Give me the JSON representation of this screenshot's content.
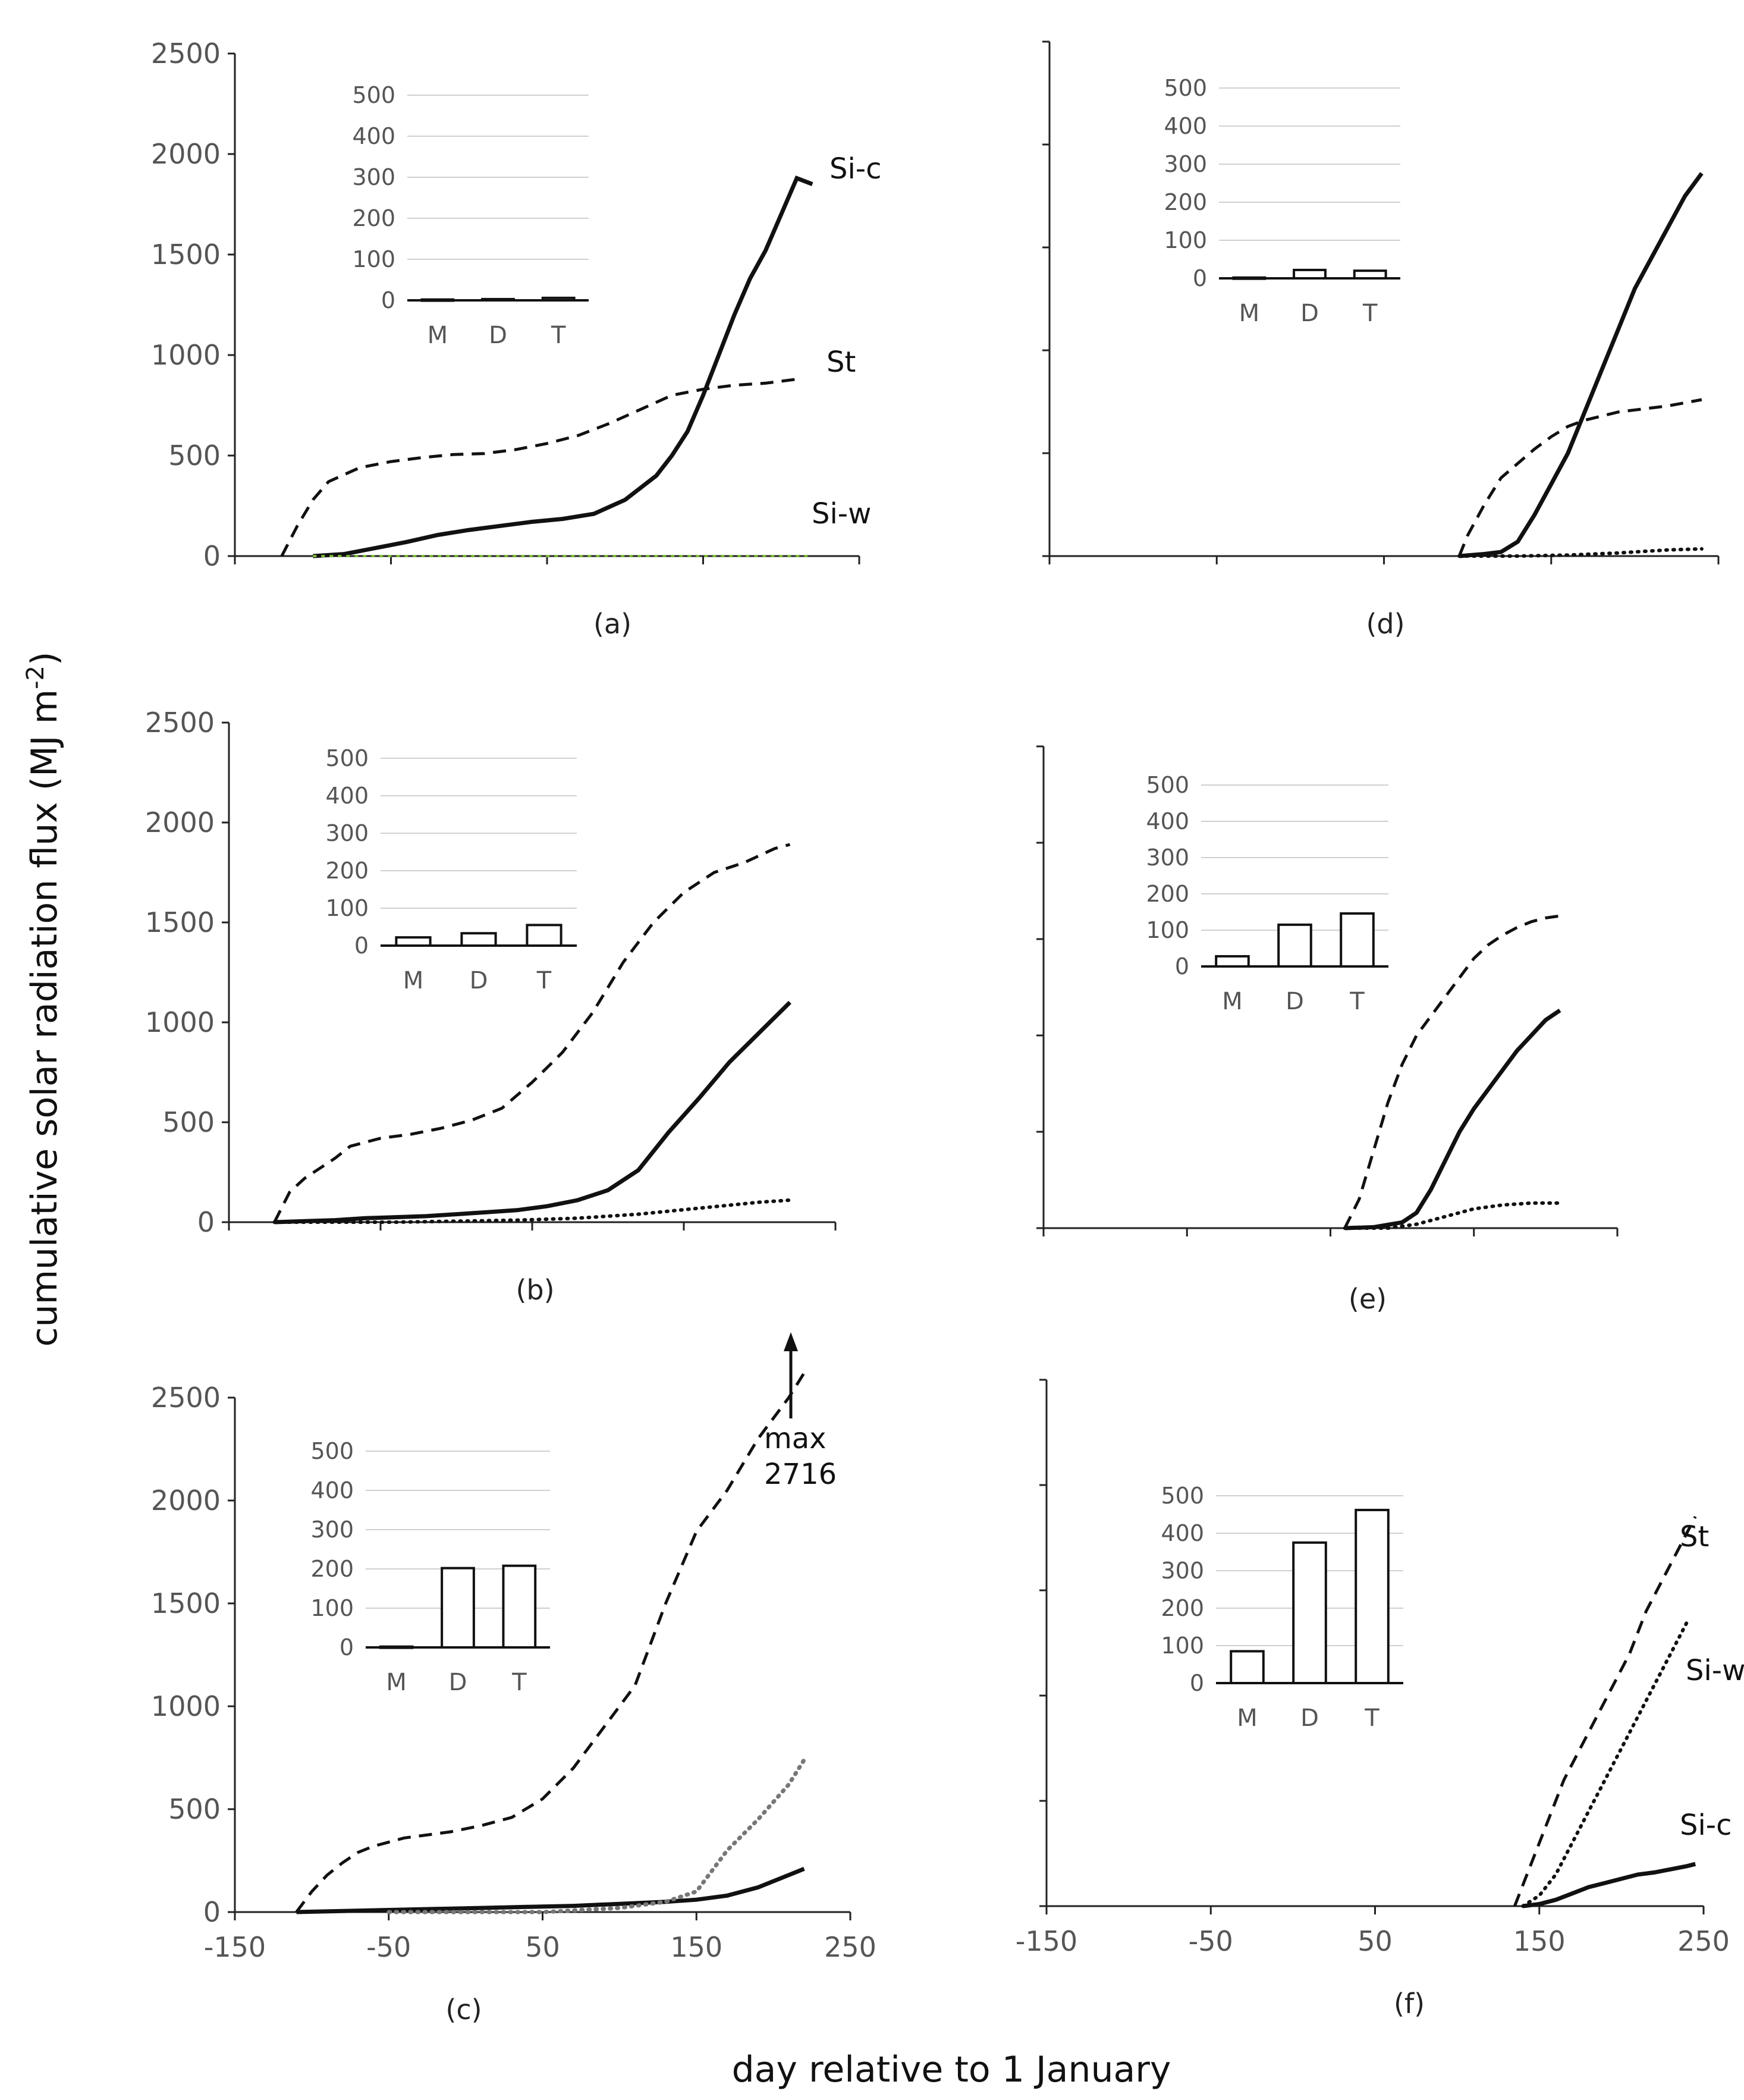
{
  "figure": {
    "ylabel": "cumulative solar radiation flux (MJ m⁻²)",
    "ylabel_base": "cumulative solar radiation flux (MJ m",
    "ylabel_sup": "-2",
    "ylabel_end": ")",
    "xlabel": "day relative to 1 January"
  },
  "chart_data": [
    {
      "panel": "(a)",
      "type": "line",
      "xlim": [
        -150,
        250
      ],
      "ylim": [
        0,
        2500
      ],
      "x_ticks_labeled": false,
      "y_ticks_labeled": true,
      "x_ticks": [
        -150,
        -50,
        50,
        150,
        250
      ],
      "y_ticks": [
        0,
        500,
        1000,
        1500,
        2000,
        2500
      ],
      "series": [
        {
          "name": "Si-c",
          "style": "solid",
          "x": [
            -100,
            -80,
            -60,
            -40,
            -20,
            0,
            20,
            40,
            60,
            80,
            100,
            110,
            120,
            130,
            140,
            150,
            160,
            170,
            180,
            190,
            200,
            210,
            220
          ],
          "y": [
            0,
            10,
            40,
            70,
            105,
            130,
            150,
            170,
            185,
            210,
            280,
            340,
            400,
            500,
            620,
            800,
            1000,
            1200,
            1380,
            1520,
            1700,
            1880,
            1850
          ]
        },
        {
          "name": "St",
          "style": "dashed",
          "x": [
            -120,
            -110,
            -100,
            -90,
            -70,
            -50,
            -30,
            -10,
            10,
            30,
            50,
            70,
            90,
            110,
            130,
            150,
            170,
            190,
            210
          ],
          "y": [
            0,
            150,
            280,
            370,
            440,
            470,
            490,
            505,
            510,
            530,
            560,
            600,
            660,
            730,
            800,
            830,
            850,
            860,
            880
          ]
        },
        {
          "name": "Si-w",
          "style": "dotted-green",
          "x": [
            -100,
            220
          ],
          "y": [
            0,
            0
          ]
        }
      ],
      "inset": {
        "categories": [
          "M",
          "D",
          "T"
        ],
        "values": [
          2,
          3,
          6
        ],
        "ylim": [
          0,
          500
        ],
        "yticks": [
          0,
          100,
          200,
          300,
          400,
          500
        ]
      },
      "annotations": []
    },
    {
      "panel": "(b)",
      "type": "line",
      "xlim": [
        -150,
        250
      ],
      "ylim": [
        0,
        2500
      ],
      "x_ticks_labeled": false,
      "y_ticks_labeled": true,
      "x_ticks": [
        -150,
        -50,
        50,
        150,
        250
      ],
      "y_ticks": [
        0,
        500,
        1000,
        1500,
        2000,
        2500
      ],
      "series": [
        {
          "name": "",
          "style": "dashed",
          "x": [
            -120,
            -110,
            -100,
            -90,
            -80,
            -70,
            -50,
            -30,
            -10,
            10,
            30,
            50,
            70,
            90,
            110,
            130,
            150,
            170,
            190,
            210,
            220
          ],
          "y": [
            0,
            150,
            220,
            270,
            320,
            380,
            420,
            440,
            470,
            510,
            570,
            700,
            850,
            1050,
            1300,
            1500,
            1650,
            1750,
            1800,
            1870,
            1890
          ]
        },
        {
          "name": "",
          "style": "solid",
          "x": [
            -120,
            -100,
            -80,
            -60,
            -40,
            -20,
            0,
            20,
            40,
            60,
            80,
            100,
            120,
            140,
            160,
            180,
            200,
            220
          ],
          "y": [
            0,
            5,
            10,
            20,
            25,
            30,
            40,
            50,
            60,
            80,
            110,
            160,
            260,
            450,
            620,
            800,
            950,
            1100
          ]
        },
        {
          "name": "",
          "style": "dotted",
          "x": [
            -120,
            -80,
            -40,
            0,
            40,
            80,
            120,
            160,
            200,
            220
          ],
          "y": [
            0,
            0,
            0,
            5,
            10,
            20,
            40,
            70,
            100,
            110
          ]
        }
      ],
      "inset": {
        "categories": [
          "M",
          "D",
          "T"
        ],
        "values": [
          22,
          33,
          55
        ],
        "ylim": [
          0,
          500
        ],
        "yticks": [
          0,
          100,
          200,
          300,
          400,
          500
        ]
      },
      "annotations": []
    },
    {
      "panel": "(c)",
      "type": "line",
      "xlim": [
        -150,
        250
      ],
      "ylim": [
        0,
        2500
      ],
      "x_ticks_labeled": true,
      "y_ticks_labeled": true,
      "x_ticks": [
        -150,
        -50,
        50,
        150,
        250
      ],
      "y_ticks": [
        0,
        500,
        1000,
        1500,
        2000,
        2500
      ],
      "series": [
        {
          "name": "",
          "style": "dashed",
          "x": [
            -110,
            -100,
            -90,
            -80,
            -70,
            -60,
            -50,
            -40,
            -30,
            -10,
            10,
            30,
            50,
            70,
            90,
            110,
            130,
            150,
            170,
            190,
            210,
            220
          ],
          "y": [
            0,
            100,
            180,
            240,
            290,
            320,
            340,
            360,
            370,
            390,
            420,
            460,
            550,
            700,
            900,
            1100,
            1500,
            1850,
            2050,
            2300,
            2500,
            2620
          ]
        },
        {
          "name": "",
          "style": "solid",
          "x": [
            -110,
            -80,
            -50,
            -20,
            10,
            40,
            70,
            100,
            130,
            150,
            170,
            190,
            210,
            220
          ],
          "y": [
            0,
            5,
            10,
            15,
            20,
            25,
            30,
            40,
            50,
            60,
            80,
            120,
            180,
            210
          ]
        },
        {
          "name": "",
          "style": "dotted-gray",
          "x": [
            -50,
            0,
            50,
            100,
            130,
            150,
            170,
            190,
            210,
            220
          ],
          "y": [
            0,
            0,
            0,
            20,
            50,
            100,
            300,
            450,
            620,
            740
          ]
        }
      ],
      "inset": {
        "categories": [
          "M",
          "D",
          "T"
        ],
        "values": [
          2,
          202,
          208
        ],
        "ylim": [
          0,
          500
        ],
        "yticks": [
          0,
          100,
          200,
          300,
          400,
          500
        ]
      },
      "annotations": [
        {
          "line1": "max",
          "line2": "2716"
        }
      ]
    },
    {
      "panel": "(d)",
      "type": "line",
      "xlim": [
        -150,
        250
      ],
      "ylim": [
        0,
        2500
      ],
      "x_ticks_labeled": false,
      "y_ticks_labeled": false,
      "x_ticks": [
        -150,
        -50,
        50,
        150,
        250
      ],
      "y_ticks": [
        0,
        500,
        1000,
        1500,
        2000,
        2500
      ],
      "series": [
        {
          "name": "",
          "style": "dashed",
          "x": [
            95,
            100,
            110,
            120,
            130,
            140,
            150,
            160,
            170,
            180,
            190,
            200,
            210,
            220,
            230,
            240
          ],
          "y": [
            0,
            100,
            250,
            380,
            450,
            520,
            580,
            630,
            660,
            680,
            700,
            710,
            720,
            730,
            745,
            760
          ]
        },
        {
          "name": "",
          "style": "solid",
          "x": [
            95,
            110,
            120,
            130,
            140,
            150,
            160,
            170,
            180,
            190,
            200,
            210,
            220,
            230,
            240
          ],
          "y": [
            0,
            10,
            20,
            70,
            200,
            350,
            500,
            700,
            900,
            1100,
            1300,
            1450,
            1600,
            1750,
            1860
          ]
        },
        {
          "name": "",
          "style": "dotted",
          "x": [
            95,
            130,
            160,
            190,
            220,
            240
          ],
          "y": [
            0,
            0,
            5,
            15,
            30,
            35
          ]
        }
      ],
      "inset": {
        "categories": [
          "M",
          "D",
          "T"
        ],
        "values": [
          2,
          22,
          20
        ],
        "ylim": [
          0,
          500
        ],
        "yticks": [
          0,
          100,
          200,
          300,
          400,
          500
        ]
      },
      "annotations": []
    },
    {
      "panel": "(e)",
      "type": "line",
      "xlim": [
        -150,
        250
      ],
      "ylim": [
        0,
        2500
      ],
      "x_ticks_labeled": false,
      "y_ticks_labeled": false,
      "x_ticks": [
        -150,
        -50,
        50,
        150,
        250
      ],
      "y_ticks": [
        0,
        500,
        1000,
        1500,
        2000,
        2500
      ],
      "series": [
        {
          "name": "",
          "style": "dashed",
          "x": [
            60,
            70,
            80,
            90,
            100,
            110,
            120,
            130,
            140,
            150,
            160,
            170,
            180,
            190,
            200,
            210
          ],
          "y": [
            0,
            150,
            400,
            650,
            850,
            1000,
            1100,
            1200,
            1300,
            1400,
            1470,
            1520,
            1560,
            1590,
            1610,
            1620
          ]
        },
        {
          "name": "",
          "style": "solid",
          "x": [
            60,
            80,
            100,
            110,
            120,
            130,
            140,
            150,
            160,
            170,
            180,
            190,
            200,
            210
          ],
          "y": [
            0,
            5,
            30,
            80,
            200,
            350,
            500,
            620,
            720,
            820,
            920,
            1000,
            1080,
            1130
          ]
        },
        {
          "name": "",
          "style": "dotted",
          "x": [
            60,
            90,
            110,
            130,
            150,
            170,
            190,
            210
          ],
          "y": [
            0,
            0,
            20,
            60,
            100,
            120,
            130,
            130
          ]
        }
      ],
      "inset": {
        "categories": [
          "M",
          "D",
          "T"
        ],
        "values": [
          28,
          115,
          146
        ],
        "ylim": [
          0,
          500
        ],
        "yticks": [
          0,
          100,
          200,
          300,
          400,
          500
        ]
      },
      "annotations": []
    },
    {
      "panel": "(f)",
      "type": "line",
      "xlim": [
        -150,
        250
      ],
      "ylim": [
        0,
        2500
      ],
      "x_ticks_labeled": true,
      "y_ticks_labeled": false,
      "x_ticks": [
        -150,
        -50,
        50,
        150,
        250
      ],
      "y_ticks": [
        0,
        500,
        1000,
        1500,
        2000,
        2500
      ],
      "series": [
        {
          "name": "St",
          "style": "dashed",
          "x": [
            135,
            145,
            155,
            165,
            175,
            185,
            195,
            205,
            215,
            225,
            235,
            245
          ],
          "y": [
            0,
            200,
            400,
            600,
            750,
            900,
            1050,
            1200,
            1400,
            1550,
            1700,
            1850
          ]
        },
        {
          "name": "Si-w",
          "style": "dotted",
          "x": [
            140,
            150,
            160,
            170,
            180,
            190,
            200,
            210,
            220,
            230,
            240
          ],
          "y": [
            0,
            50,
            150,
            300,
            450,
            600,
            750,
            900,
            1050,
            1200,
            1350
          ]
        },
        {
          "name": "Si-c",
          "style": "solid",
          "x": [
            140,
            150,
            160,
            170,
            180,
            190,
            200,
            210,
            220,
            230,
            240,
            245
          ],
          "y": [
            0,
            10,
            30,
            60,
            90,
            110,
            130,
            150,
            160,
            175,
            190,
            200
          ]
        }
      ],
      "inset": {
        "categories": [
          "M",
          "D",
          "T"
        ],
        "values": [
          85,
          375,
          462
        ],
        "ylim": [
          0,
          500
        ],
        "yticks": [
          0,
          100,
          200,
          300,
          400,
          500
        ]
      },
      "annotations": []
    }
  ]
}
